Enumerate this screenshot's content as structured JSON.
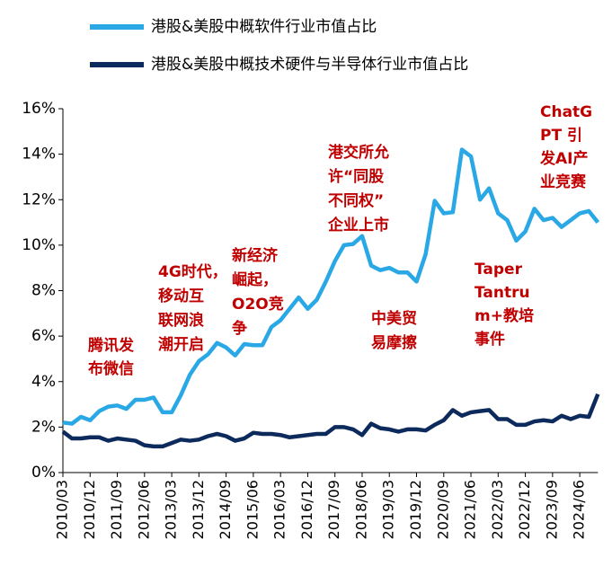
{
  "chart_data": {
    "type": "line",
    "categories": [
      "2010/03",
      null,
      null,
      "2010/12",
      null,
      null,
      "2011/09",
      null,
      null,
      "2012/06",
      null,
      null,
      "2013/03",
      null,
      null,
      "2013/12",
      null,
      null,
      "2014/09",
      null,
      null,
      "2015/06",
      null,
      null,
      "2016/03",
      null,
      null,
      "2016/12",
      null,
      null,
      "2017/09",
      null,
      null,
      "2018/06",
      null,
      null,
      "2019/03",
      null,
      null,
      "2019/12",
      null,
      null,
      "2020/09",
      null,
      null,
      "2021/06",
      null,
      null,
      "2022/03",
      null,
      null,
      "2022/12",
      null,
      null,
      "2023/09",
      null,
      null,
      "2024/06",
      null,
      null
    ],
    "series": [
      {
        "name": "港股&美股中概软件行业市值占比",
        "color": "#2AA8E6",
        "values": [
          2.2,
          2.15,
          2.45,
          2.3,
          2.7,
          2.9,
          2.95,
          2.8,
          3.2,
          3.2,
          3.3,
          2.65,
          2.65,
          3.4,
          4.3,
          4.9,
          5.2,
          5.7,
          5.5,
          5.15,
          5.65,
          5.6,
          5.6,
          6.4,
          6.7,
          7.2,
          7.7,
          7.2,
          7.6,
          8.4,
          9.3,
          10.0,
          10.05,
          10.4,
          9.1,
          8.9,
          9.0,
          8.8,
          8.8,
          8.4,
          9.6,
          11.95,
          11.4,
          11.45,
          14.2,
          13.9,
          12.0,
          12.5,
          11.4,
          11.1,
          10.2,
          10.6,
          11.6,
          11.1,
          11.2,
          10.8,
          11.1,
          11.4,
          11.5,
          11.0
        ]
      },
      {
        "name": "港股&美股中概技术硬件与半导体行业市值占比",
        "color": "#0D2A5C",
        "values": [
          1.8,
          1.5,
          1.5,
          1.55,
          1.55,
          1.4,
          1.5,
          1.45,
          1.4,
          1.2,
          1.15,
          1.15,
          1.3,
          1.45,
          1.4,
          1.45,
          1.6,
          1.7,
          1.6,
          1.4,
          1.5,
          1.75,
          1.7,
          1.7,
          1.65,
          1.55,
          1.6,
          1.65,
          1.7,
          1.7,
          2.0,
          2.0,
          1.9,
          1.65,
          2.15,
          1.95,
          1.9,
          1.8,
          1.9,
          1.9,
          1.85,
          2.1,
          2.3,
          2.75,
          2.5,
          2.65,
          2.7,
          2.75,
          2.35,
          2.35,
          2.1,
          2.1,
          2.25,
          2.3,
          2.25,
          2.5,
          2.35,
          2.5,
          2.45,
          3.45
        ]
      }
    ],
    "ylim": [
      0,
      16
    ],
    "yticks": [
      {
        "value": 0,
        "label": "0%"
      },
      {
        "value": 2,
        "label": "2%"
      },
      {
        "value": 4,
        "label": "4%"
      },
      {
        "value": 6,
        "label": "6%"
      },
      {
        "value": 8,
        "label": "8%"
      },
      {
        "value": 10,
        "label": "10%"
      },
      {
        "value": 12,
        "label": "12%"
      },
      {
        "value": 14,
        "label": "14%"
      },
      {
        "value": 16,
        "label": "16%"
      }
    ],
    "annotation_color": "#C00000",
    "annotations": [
      {
        "lines": [
          "腾讯发",
          "布微信"
        ]
      },
      {
        "lines": [
          "4G时代，",
          "移动互",
          "联网浪",
          "潮开启"
        ]
      },
      {
        "lines": [
          "新经济",
          "崛起，",
          "O2O竞",
          "争"
        ]
      },
      {
        "lines": [
          "港交所允",
          "许“同股",
          "不同权”",
          "企业上市"
        ]
      },
      {
        "lines": [
          "中美贸",
          "易摩擦"
        ]
      },
      {
        "lines": [
          "Taper",
          "Tantru",
          "m+教培",
          "事件"
        ]
      },
      {
        "lines": [
          "ChatG",
          "PT 引",
          "发AI产",
          "业竞赛"
        ]
      }
    ]
  }
}
